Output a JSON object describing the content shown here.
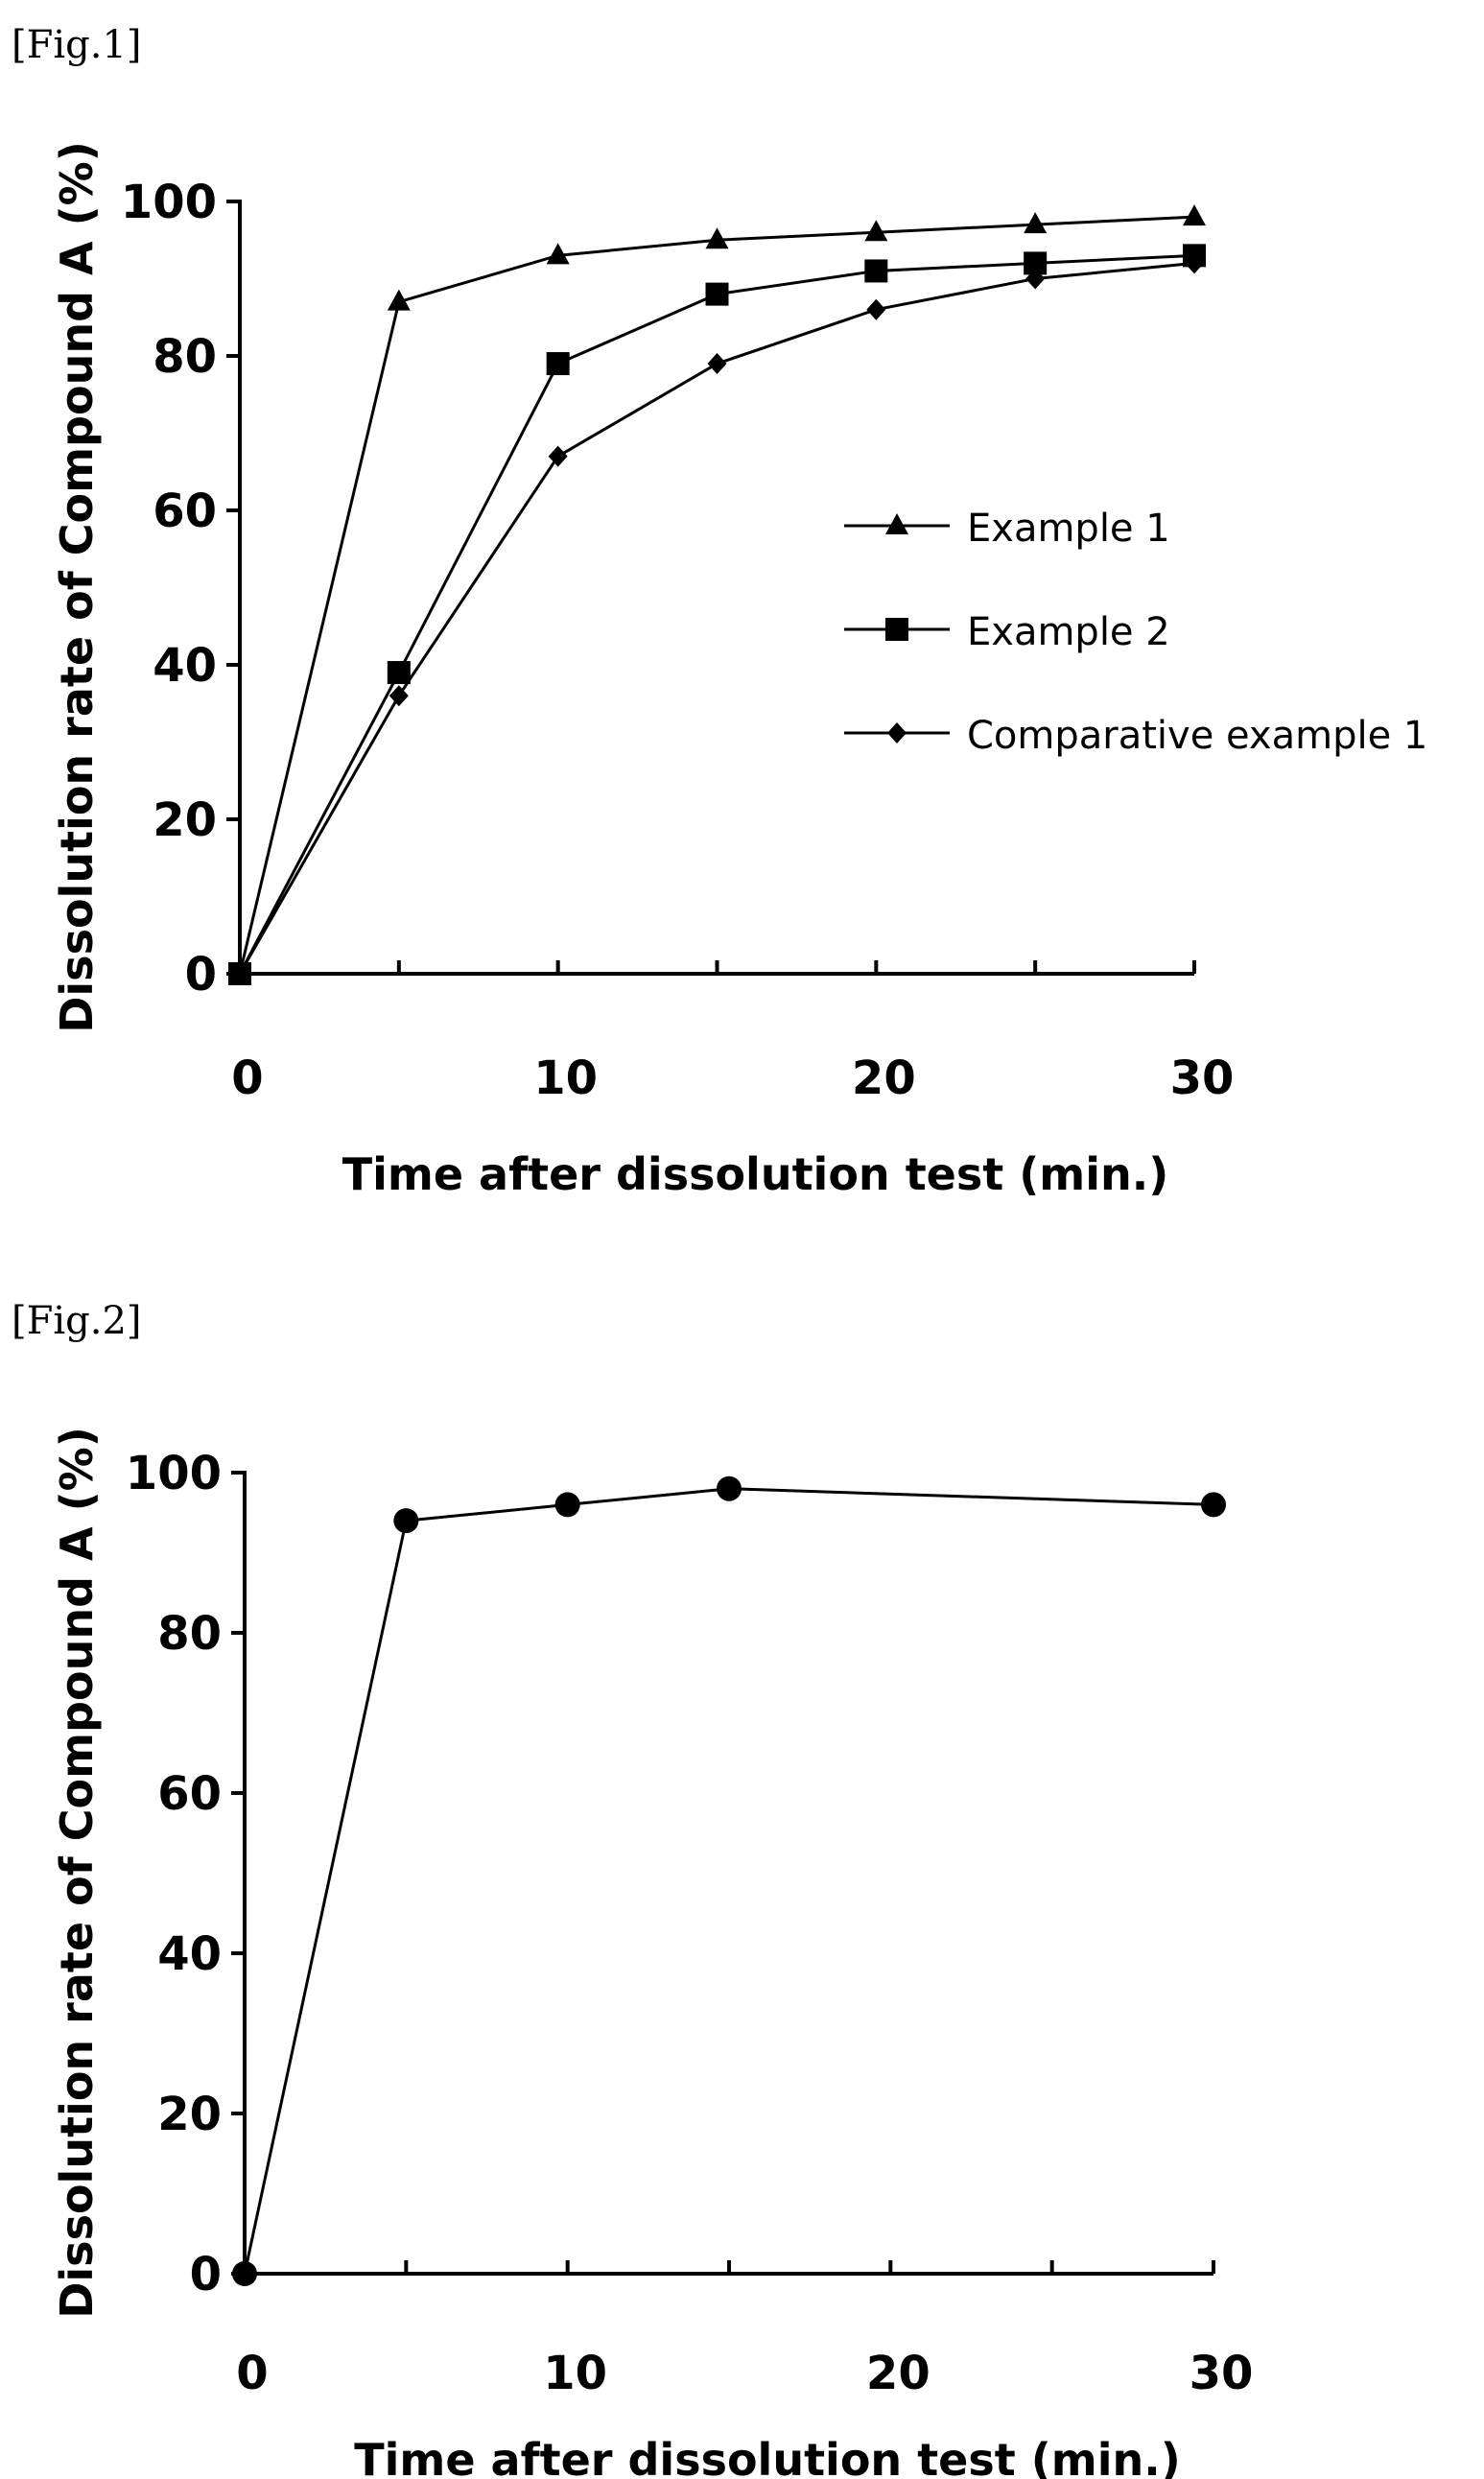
{
  "figures": [
    {
      "label": "[Fig.1]"
    },
    {
      "label": "[Fig.2]"
    }
  ],
  "chart_data": [
    {
      "type": "line",
      "title": "",
      "xlabel": "Time after dissolution test (min.)",
      "ylabel": "Dissolution rate of Compound A (%)",
      "xlim": [
        0,
        30
      ],
      "ylim": [
        0,
        100
      ],
      "xticks": [
        "0",
        "10",
        "20",
        "30"
      ],
      "yticks": [
        "0",
        "20",
        "40",
        "60",
        "80",
        "100"
      ],
      "grid": false,
      "legend_position": "right",
      "series": [
        {
          "name": "Example 1",
          "marker": "triangle",
          "x": [
            0,
            5,
            10,
            15,
            20,
            25,
            30
          ],
          "y": [
            0,
            87,
            93,
            95,
            96,
            97,
            98
          ]
        },
        {
          "name": "Example 2",
          "marker": "square",
          "x": [
            0,
            5,
            10,
            15,
            20,
            25,
            30
          ],
          "y": [
            0,
            39,
            79,
            88,
            91,
            92,
            93
          ]
        },
        {
          "name": "Comparative example 1",
          "marker": "diamond",
          "x": [
            0,
            5,
            10,
            15,
            20,
            25,
            30
          ],
          "y": [
            0,
            36,
            67,
            79,
            86,
            90,
            92
          ]
        }
      ]
    },
    {
      "type": "line",
      "title": "",
      "xlabel": "Time after dissolution test (min.)",
      "ylabel": "Dissolution rate of Compound A (%)",
      "xlim": [
        0,
        30
      ],
      "ylim": [
        0,
        100
      ],
      "xticks": [
        "0",
        "10",
        "20",
        "30"
      ],
      "yticks": [
        "0",
        "20",
        "40",
        "60",
        "80",
        "100"
      ],
      "grid": false,
      "series": [
        {
          "marker": "circle",
          "x": [
            0,
            5,
            10,
            15,
            30
          ],
          "y": [
            0,
            94,
            96,
            98,
            96
          ]
        }
      ]
    }
  ]
}
